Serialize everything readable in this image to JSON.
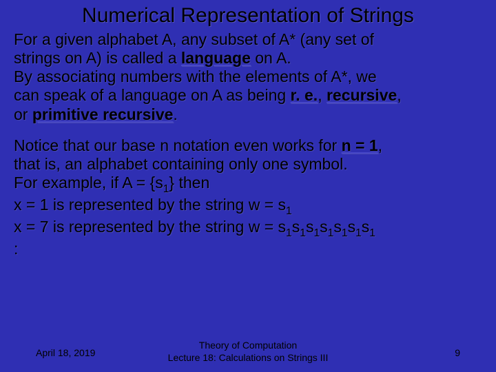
{
  "colors": {
    "background": "#2f2fb3",
    "text": "#000000",
    "shadow": "rgba(100,100,180,0.45)",
    "underline": "#4848c8"
  },
  "typography": {
    "title_fontsize": 30,
    "body_fontsize": 23,
    "footer_fontsize": 14,
    "font_family": "Arial"
  },
  "title": "Numerical Representation of Strings",
  "block1": {
    "l1": "For a given alphabet A, any subset of A* (any set of",
    "l2a": "strings on A) is called a ",
    "l2b": "language",
    "l2c": " on A.",
    "l3": "By associating numbers with the elements of A*, we",
    "l4a": "can speak of a language on A as being ",
    "l4b": "r. e.",
    "l4c": ", ",
    "l4d": "recursive",
    "l4e": ",",
    "l5a": "or ",
    "l5b": "primitive recursive",
    "l5c": "."
  },
  "block2": {
    "l1a": "Notice that our base n notation even works for ",
    "l1b": "n = 1",
    "l1c": ",",
    "l2": "that is, an alphabet containing only one symbol.",
    "l3a": "For example, if A = {s",
    "l3b": "1",
    "l3c": "} then",
    "l4a": "x = 1 is represented by the string w = s",
    "l4b": "1",
    "l5a": "x = 7 is represented by the string w = s",
    "l5b": "1",
    "l5c": "s",
    "l5d": "1",
    "l5e": "s",
    "l5f": "1",
    "l5g": "s",
    "l5h": "1",
    "l5i": "s",
    "l5j": "1",
    "l5k": "s",
    "l5l": "1",
    "l5m": "s",
    "l5n": "1",
    "l6": ":"
  },
  "footer": {
    "date": "April 18, 2019",
    "line1": "Theory of Computation",
    "line2": "Lecture 18: Calculations on Strings III",
    "page": "9"
  }
}
